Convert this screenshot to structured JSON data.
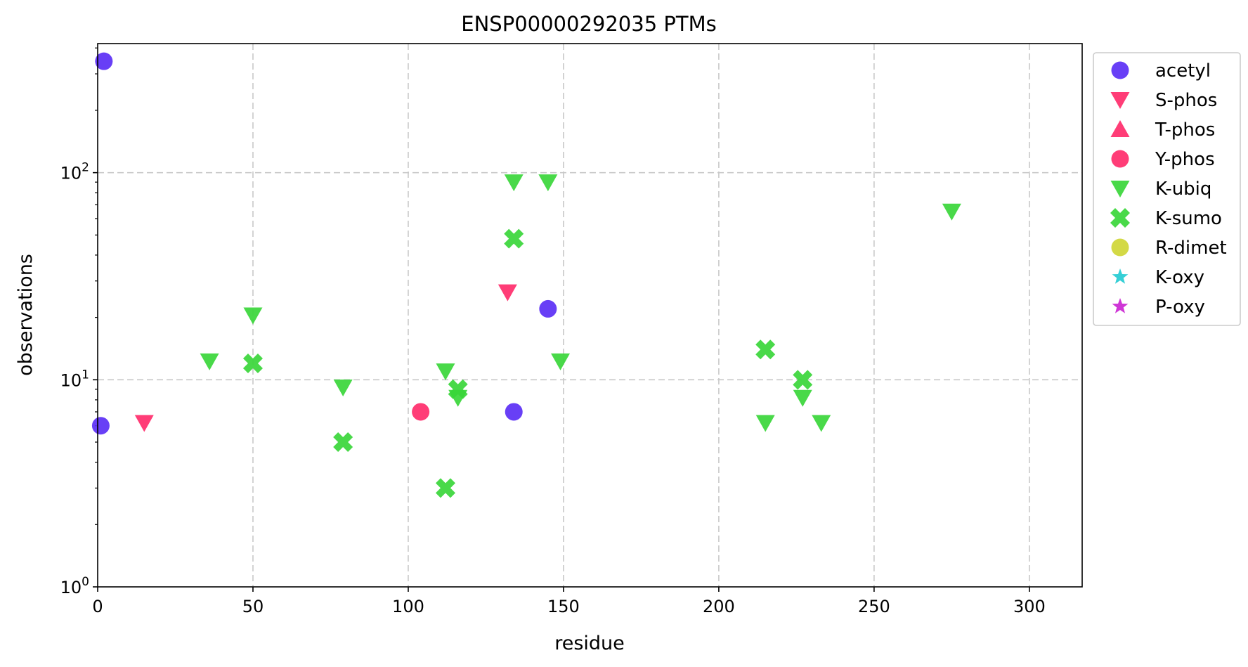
{
  "chart_data": {
    "type": "scatter",
    "title": "ENSP00000292035 PTMs",
    "xlabel": "residue",
    "ylabel": "observations",
    "xlim": [
      0,
      317
    ],
    "ylim": [
      1,
      420
    ],
    "yscale": "log",
    "grid": true,
    "legend_position": "outside-right",
    "x_ticks": [
      {
        "value": 0,
        "label": "0"
      },
      {
        "value": 50,
        "label": "50"
      },
      {
        "value": 100,
        "label": "100"
      },
      {
        "value": 150,
        "label": "150"
      },
      {
        "value": 200,
        "label": "200"
      },
      {
        "value": 250,
        "label": "250"
      },
      {
        "value": 300,
        "label": "300"
      }
    ],
    "y_ticks": [
      {
        "value": 1,
        "base": "10",
        "exp": "0"
      },
      {
        "value": 10,
        "base": "10",
        "exp": "1"
      },
      {
        "value": 100,
        "base": "10",
        "exp": "2"
      }
    ],
    "series": [
      {
        "name": "acetyl",
        "marker": "circle",
        "color": "#5b2ff5",
        "points": [
          [
            2,
            345
          ],
          [
            1,
            6
          ],
          [
            145,
            22
          ],
          [
            134,
            7
          ]
        ]
      },
      {
        "name": "S-phos",
        "marker": "triangle-down",
        "color": "#ff2d6b",
        "points": [
          [
            15,
            6.2
          ],
          [
            132,
            26.5
          ]
        ]
      },
      {
        "name": "T-phos",
        "marker": "triangle-up",
        "color": "#ff2d6b",
        "points": []
      },
      {
        "name": "Y-phos",
        "marker": "circle",
        "color": "#ff2d6b",
        "points": [
          [
            104,
            7
          ]
        ]
      },
      {
        "name": "K-ubiq",
        "marker": "triangle-down",
        "color": "#39d639",
        "points": [
          [
            36,
            12.3
          ],
          [
            50,
            20.5
          ],
          [
            79,
            9.2
          ],
          [
            112,
            11
          ],
          [
            116,
            8.2
          ],
          [
            134,
            90
          ],
          [
            145,
            90
          ],
          [
            149,
            12.3
          ],
          [
            215,
            6.2
          ],
          [
            227,
            8.2
          ],
          [
            233,
            6.2
          ],
          [
            275,
            65
          ]
        ]
      },
      {
        "name": "K-sumo",
        "marker": "x",
        "color": "#39d639",
        "points": [
          [
            50,
            12
          ],
          [
            79,
            5
          ],
          [
            112,
            3
          ],
          [
            116,
            9
          ],
          [
            134,
            48
          ],
          [
            215,
            14
          ],
          [
            227,
            10
          ]
        ]
      },
      {
        "name": "R-dimet",
        "marker": "circle",
        "color": "#cfd636",
        "points": []
      },
      {
        "name": "K-oxy",
        "marker": "star",
        "color": "#36cfd6",
        "points": []
      },
      {
        "name": "P-oxy",
        "marker": "star",
        "color": "#cf36d6",
        "points": []
      }
    ]
  }
}
